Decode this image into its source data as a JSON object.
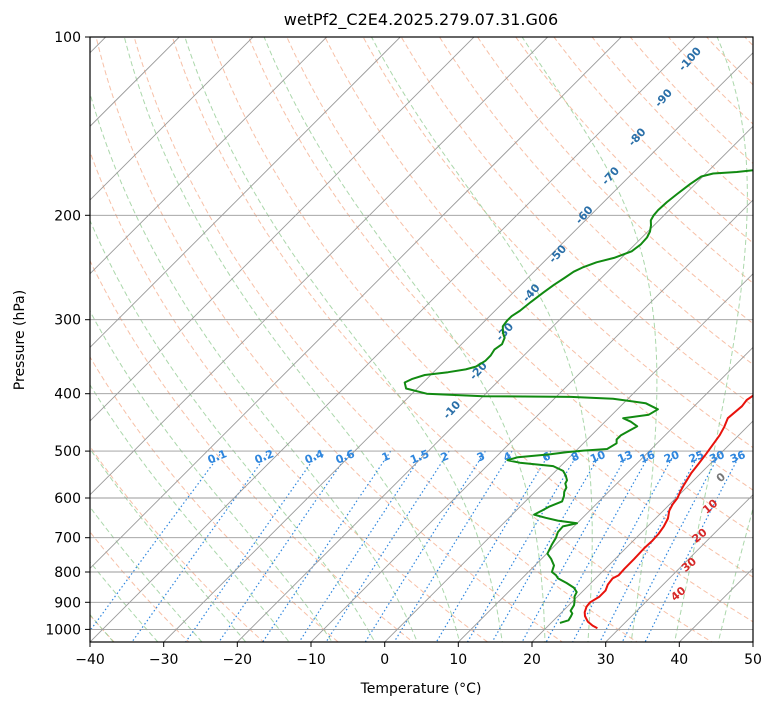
{
  "chart_data": {
    "type": "skew-t",
    "title": "wetPf2_C2E4.2025.279.07.31.G06",
    "xlabel": "Temperature (°C)",
    "ylabel": "Pressure (hPa)",
    "xlim": [
      -40,
      50
    ],
    "ylim": [
      1050,
      100
    ],
    "x_ticks": [
      "−40",
      "−30",
      "−20",
      "−10",
      "0",
      "10",
      "20",
      "30",
      "40",
      "50"
    ],
    "y_ticks": [
      "100",
      "200",
      "300",
      "400",
      "500",
      "600",
      "700",
      "800",
      "900",
      "1000"
    ],
    "y_scale": "log",
    "grid": true,
    "colors": {
      "temperature": "#e8120c",
      "dewpoint": "#118a11",
      "dry_adiabat": "#f4a582",
      "moist_adiabat": "#8fc98f",
      "mixing_ratio": "#2e86de",
      "isotherm": "#9a9a9a",
      "hodo_label": "#d62728"
    },
    "series": [
      {
        "name": "Temperature",
        "points": [
          [
            27,
            995
          ],
          [
            26,
            985
          ],
          [
            24.8,
            970
          ],
          [
            23.7,
            950
          ],
          [
            23.1,
            935
          ],
          [
            22.6,
            915
          ],
          [
            22.5,
            900
          ],
          [
            23,
            880
          ],
          [
            23,
            860
          ],
          [
            22.5,
            840
          ],
          [
            22.3,
            820
          ],
          [
            22.7,
            810
          ],
          [
            22.6,
            790
          ],
          [
            22.6,
            760
          ],
          [
            22.5,
            730
          ],
          [
            22.6,
            710
          ],
          [
            22.5,
            690
          ],
          [
            22.2,
            670
          ],
          [
            21.7,
            650
          ],
          [
            20.8,
            630
          ],
          [
            20.4,
            615
          ],
          [
            20.2,
            600
          ],
          [
            19.7,
            585
          ],
          [
            19.3,
            570
          ],
          [
            18.7,
            545
          ],
          [
            18.4,
            525
          ],
          [
            18.1,
            505
          ],
          [
            17.8,
            490
          ],
          [
            17.4,
            470
          ],
          [
            16.9,
            455
          ],
          [
            16.2,
            440
          ],
          [
            16.5,
            420
          ],
          [
            16.3,
            410
          ],
          [
            16.6,
            402
          ],
          [
            17.4,
            396
          ],
          [
            17.8,
            388
          ],
          [
            17.3,
            375
          ],
          [
            16.6,
            368
          ],
          [
            15.4,
            357
          ],
          [
            14.1,
            345
          ],
          [
            13.1,
            335
          ],
          [
            12.3,
            325
          ],
          [
            12,
            315
          ],
          [
            12.8,
            305
          ],
          [
            14.2,
            298
          ],
          [
            16.2,
            290
          ],
          [
            17.8,
            280
          ],
          [
            17.9,
            270
          ],
          [
            17.2,
            260
          ],
          [
            16.1,
            252
          ],
          [
            15.5,
            240
          ],
          [
            15.1,
            225
          ],
          [
            14.8,
            212
          ],
          [
            13.7,
            205
          ],
          [
            11.6,
            195
          ],
          [
            9.2,
            185
          ],
          [
            6.1,
            173
          ],
          [
            3.1,
            160
          ],
          [
            0.5,
            150
          ],
          [
            -1.5,
            142
          ],
          [
            -3.2,
            135
          ],
          [
            -5.2,
            128
          ],
          [
            -7.1,
            122
          ],
          [
            -8.9,
            117
          ],
          [
            -9.9,
            113
          ],
          [
            -9.8,
            110
          ],
          [
            -9.5,
            106
          ],
          [
            -8.9,
            103
          ]
        ]
      },
      {
        "name": "Dewpoint",
        "points": [
          [
            21.2,
            975
          ],
          [
            22,
            965
          ],
          [
            21.8,
            950
          ],
          [
            21.6,
            940
          ],
          [
            21,
            930
          ],
          [
            20.7,
            910
          ],
          [
            20.2,
            895
          ],
          [
            19.6,
            880
          ],
          [
            19.3,
            865
          ],
          [
            18.3,
            850
          ],
          [
            16.7,
            835
          ],
          [
            14.9,
            820
          ],
          [
            14.2,
            810
          ],
          [
            13.2,
            800
          ],
          [
            12.6,
            780
          ],
          [
            11.3,
            760
          ],
          [
            10.1,
            745
          ],
          [
            9.5,
            720
          ],
          [
            9.1,
            700
          ],
          [
            8.6,
            685
          ],
          [
            8.5,
            670
          ],
          [
            10,
            662
          ],
          [
            7,
            655
          ],
          [
            5,
            648
          ],
          [
            3,
            640
          ],
          [
            3.5,
            630
          ],
          [
            4,
            620
          ],
          [
            5,
            608
          ],
          [
            4.5,
            595
          ],
          [
            4,
            586
          ],
          [
            3.7,
            576
          ],
          [
            3,
            567
          ],
          [
            2.8,
            560
          ],
          [
            2,
            550
          ],
          [
            1,
            540
          ],
          [
            -1,
            530
          ],
          [
            -6,
            523
          ],
          [
            -8,
            518
          ],
          [
            -7,
            512
          ],
          [
            -3,
            506
          ],
          [
            -1,
            502
          ],
          [
            1,
            499
          ],
          [
            4,
            496
          ],
          [
            4.5,
            485
          ],
          [
            4,
            478
          ],
          [
            4,
            470
          ],
          [
            4.5,
            462
          ],
          [
            5,
            454
          ],
          [
            3.5,
            446
          ],
          [
            2,
            440
          ],
          [
            5,
            434
          ],
          [
            5.5,
            425
          ],
          [
            3,
            415
          ],
          [
            -2,
            408
          ],
          [
            -8,
            405
          ],
          [
            -20,
            404
          ],
          [
            -28,
            400
          ],
          [
            -31.5,
            392
          ],
          [
            -32.5,
            383
          ],
          [
            -32,
            378
          ],
          [
            -30.8,
            372
          ],
          [
            -28,
            368
          ],
          [
            -26,
            364
          ],
          [
            -25,
            360
          ],
          [
            -24.5,
            352
          ],
          [
            -24.5,
            345
          ],
          [
            -24.8,
            337
          ],
          [
            -24.5,
            330
          ],
          [
            -25,
            322
          ],
          [
            -26,
            315
          ],
          [
            -26.8,
            308
          ],
          [
            -27,
            301
          ],
          [
            -27,
            296
          ],
          [
            -26.6,
            290
          ],
          [
            -26.3,
            280
          ],
          [
            -25.9,
            270
          ],
          [
            -25.5,
            262
          ],
          [
            -25,
            255
          ],
          [
            -24.6,
            249
          ],
          [
            -24,
            245
          ],
          [
            -22.8,
            240
          ],
          [
            -21,
            236
          ],
          [
            -19.5,
            230
          ],
          [
            -19.2,
            224
          ],
          [
            -19.3,
            218
          ],
          [
            -19.7,
            213
          ],
          [
            -20.4,
            208
          ],
          [
            -21.1,
            204
          ],
          [
            -21.4,
            200
          ],
          [
            -21.5,
            196
          ],
          [
            -21.4,
            190
          ],
          [
            -21.1,
            184
          ],
          [
            -20.7,
            177
          ],
          [
            -20.2,
            172
          ],
          [
            -19,
            170
          ],
          [
            -16,
            169
          ],
          [
            -12.5,
            167
          ],
          [
            -10.5,
            164
          ],
          [
            -9.3,
            159
          ],
          [
            -8.2,
            154
          ],
          [
            -7.1,
            150
          ],
          [
            -6.1,
            146
          ],
          [
            -5.2,
            143
          ],
          [
            -4.1,
            140
          ],
          [
            -3,
            137
          ],
          [
            -2.3,
            134
          ],
          [
            -2.1,
            132
          ],
          [
            -2.4,
            130
          ],
          [
            -2.9,
            128
          ],
          [
            -3.7,
            125
          ],
          [
            -4.6,
            122
          ],
          [
            -5.6,
            119
          ],
          [
            -6.6,
            116
          ],
          [
            -7.8,
            113
          ],
          [
            -8.8,
            110
          ],
          [
            -9.7,
            107
          ],
          [
            -10.1,
            104
          ],
          [
            -9.6,
            102
          ],
          [
            -8.6,
            100.5
          ]
        ]
      }
    ],
    "mixing_ratio_labels": [
      "0.1",
      "0.2",
      "0.4",
      "0.6",
      "1",
      "1.5",
      "2",
      "3",
      "4",
      "6",
      "8",
      "10",
      "13",
      "16",
      "20",
      "25",
      "30",
      "36"
    ],
    "moist_adiabat_labels": [
      "-100",
      "-90",
      "-80",
      "-70",
      "-60",
      "-50",
      "-40",
      "-30",
      "-20",
      "-10"
    ],
    "hodograph_labels": [
      "0",
      "10",
      "20",
      "30",
      "40"
    ]
  }
}
